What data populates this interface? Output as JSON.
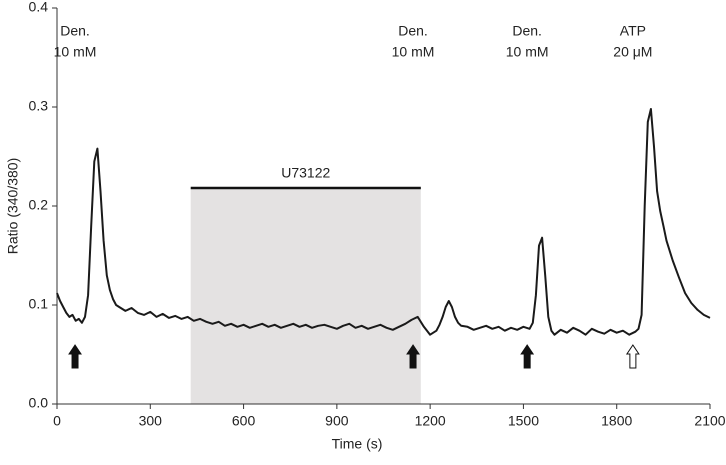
{
  "chart_data": {
    "type": "line",
    "xlabel": "Time (s)",
    "ylabel": "Ratio (340/380)",
    "x": [
      0,
      10,
      20,
      30,
      40,
      50,
      60,
      70,
      80,
      90,
      100,
      110,
      120,
      130,
      140,
      150,
      160,
      170,
      180,
      190,
      200,
      220,
      240,
      260,
      280,
      300,
      320,
      340,
      360,
      380,
      400,
      420,
      440,
      460,
      480,
      500,
      520,
      540,
      560,
      580,
      600,
      620,
      640,
      660,
      680,
      700,
      720,
      740,
      760,
      780,
      800,
      820,
      840,
      860,
      880,
      900,
      920,
      940,
      960,
      980,
      1000,
      1020,
      1040,
      1060,
      1080,
      1100,
      1120,
      1140,
      1160,
      1180,
      1200,
      1220,
      1230,
      1240,
      1250,
      1260,
      1270,
      1280,
      1290,
      1300,
      1320,
      1340,
      1360,
      1380,
      1400,
      1420,
      1440,
      1460,
      1480,
      1500,
      1520,
      1530,
      1540,
      1550,
      1560,
      1570,
      1580,
      1590,
      1600,
      1620,
      1640,
      1660,
      1680,
      1700,
      1720,
      1740,
      1760,
      1780,
      1800,
      1820,
      1840,
      1860,
      1870,
      1880,
      1890,
      1900,
      1910,
      1920,
      1930,
      1940,
      1950,
      1960,
      1980,
      2000,
      2020,
      2040,
      2060,
      2080,
      2100
    ],
    "series": [
      {
        "color": "#1a1a1a",
        "values": [
          0.112,
          0.104,
          0.098,
          0.092,
          0.088,
          0.09,
          0.084,
          0.086,
          0.082,
          0.088,
          0.11,
          0.18,
          0.245,
          0.258,
          0.215,
          0.165,
          0.13,
          0.115,
          0.106,
          0.1,
          0.098,
          0.094,
          0.097,
          0.092,
          0.09,
          0.093,
          0.088,
          0.091,
          0.087,
          0.089,
          0.086,
          0.088,
          0.084,
          0.086,
          0.083,
          0.081,
          0.083,
          0.079,
          0.081,
          0.078,
          0.08,
          0.077,
          0.079,
          0.081,
          0.078,
          0.08,
          0.077,
          0.079,
          0.081,
          0.078,
          0.08,
          0.077,
          0.079,
          0.08,
          0.078,
          0.076,
          0.079,
          0.081,
          0.077,
          0.079,
          0.076,
          0.078,
          0.08,
          0.077,
          0.075,
          0.078,
          0.081,
          0.085,
          0.088,
          0.078,
          0.07,
          0.074,
          0.08,
          0.088,
          0.098,
          0.104,
          0.098,
          0.088,
          0.082,
          0.079,
          0.078,
          0.075,
          0.077,
          0.079,
          0.076,
          0.078,
          0.074,
          0.077,
          0.075,
          0.078,
          0.076,
          0.082,
          0.11,
          0.16,
          0.168,
          0.13,
          0.088,
          0.074,
          0.07,
          0.075,
          0.072,
          0.077,
          0.074,
          0.07,
          0.076,
          0.073,
          0.071,
          0.075,
          0.072,
          0.074,
          0.07,
          0.073,
          0.076,
          0.09,
          0.2,
          0.285,
          0.298,
          0.26,
          0.215,
          0.195,
          0.18,
          0.165,
          0.145,
          0.128,
          0.112,
          0.102,
          0.095,
          0.09,
          0.087
        ]
      }
    ],
    "xlim": [
      0,
      2100
    ],
    "xticks": [
      0,
      300,
      600,
      900,
      1200,
      1500,
      1800,
      2100
    ],
    "ylim": [
      0,
      0.4
    ],
    "yticks": [
      {
        "value": 0,
        "label": "0.0"
      },
      {
        "value": 0.1,
        "label": "0.1"
      },
      {
        "value": 0.2,
        "label": "0.2"
      },
      {
        "value": 0.3,
        "label": "0.3"
      },
      {
        "value": 0.4,
        "label": "0.4"
      }
    ],
    "shaded_region": {
      "label": "U73122",
      "start": 430,
      "end": 1170,
      "color": "#e4e2e2"
    },
    "annotations": [
      {
        "lines": [
          "Den.",
          "10 mM"
        ],
        "x": 58,
        "arrow": "filled"
      },
      {
        "lines": [
          "Den.",
          "10 mM"
        ],
        "x": 1145,
        "arrow": "filled"
      },
      {
        "lines": [
          "Den.",
          "10 mM"
        ],
        "x": 1512,
        "arrow": "filled"
      },
      {
        "lines": [
          "ATP",
          "20 μM"
        ],
        "x": 1852,
        "arrow": "open"
      }
    ]
  }
}
